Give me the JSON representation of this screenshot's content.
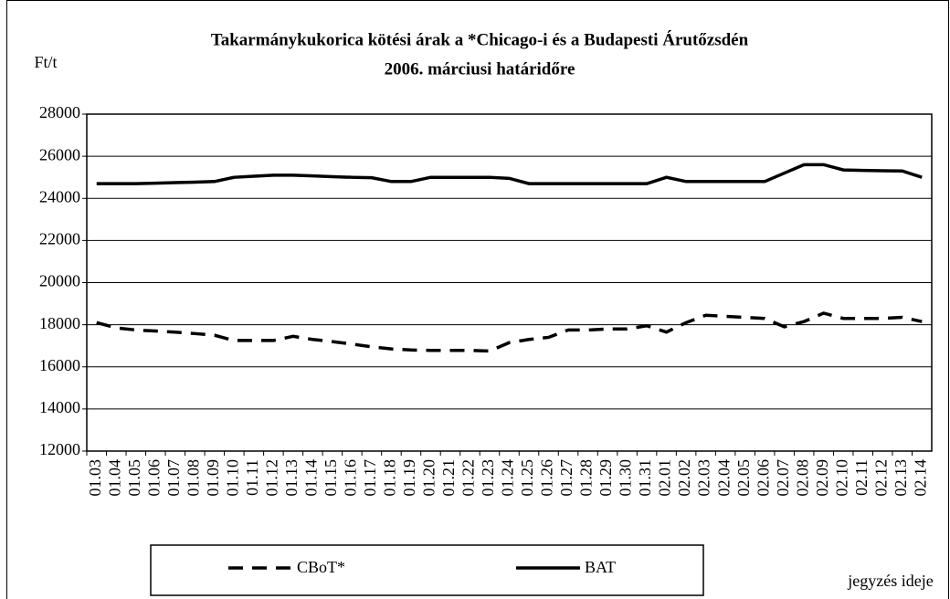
{
  "chart_data": {
    "type": "line",
    "title": [
      "Takarmánykukorica kötési árak a *Chicago-i és a Budapesti Árutőzsdén",
      "2006. márciusi határidőre"
    ],
    "y_label": "Ft/t",
    "x_label": "jegyzés ideje",
    "categories": [
      "01.03",
      "01.04",
      "01.05",
      "01.06",
      "01.07",
      "01.08",
      "01.09",
      "01.10",
      "01.11",
      "01.12",
      "01.13",
      "01.14",
      "01.15",
      "01.16",
      "01.17",
      "01.18",
      "01.19",
      "01.20",
      "01.21",
      "01.22",
      "01.23",
      "01.24",
      "01.25",
      "01.26",
      "01.27",
      "01.28",
      "01.29",
      "01.30",
      "01.31",
      "02.01",
      "02.02",
      "02.03",
      "02.04",
      "02.05",
      "02.06",
      "02.07",
      "02.08",
      "02.09",
      "02.10",
      "02.11",
      "02.12",
      "02.13",
      "02.14"
    ],
    "series": [
      {
        "name": "CBoT*",
        "color": "#000000",
        "dashed": true,
        "values": [
          18100,
          17850,
          17750,
          17700,
          17650,
          17580,
          17500,
          17250,
          17250,
          17250,
          17450,
          17300,
          17200,
          17080,
          16950,
          16850,
          16800,
          16780,
          16780,
          16780,
          16750,
          17150,
          17300,
          17400,
          17750,
          17750,
          17800,
          17800,
          17950,
          17650,
          18100,
          18450,
          18400,
          18350,
          18300,
          17900,
          18150,
          18550,
          18300,
          18300,
          18300,
          18350,
          18150
        ]
      },
      {
        "name": "BAT",
        "color": "#000000",
        "dashed": false,
        "values": [
          24700,
          24700,
          24700,
          24720,
          24750,
          24770,
          24800,
          25000,
          25050,
          25100,
          25100,
          25070,
          25030,
          25000,
          24980,
          24800,
          24800,
          25000,
          25000,
          25000,
          25000,
          24950,
          24700,
          24700,
          24700,
          24700,
          24700,
          24700,
          24700,
          25000,
          24800,
          24800,
          24800,
          24800,
          24800,
          25200,
          25600,
          25600,
          25350,
          25330,
          25310,
          25300,
          25000
        ]
      }
    ],
    "ylim": [
      12000,
      28000
    ],
    "yticks": [
      12000,
      14000,
      16000,
      18000,
      20000,
      22000,
      24000,
      26000,
      28000
    ],
    "grid": true,
    "legend": "bottom"
  }
}
